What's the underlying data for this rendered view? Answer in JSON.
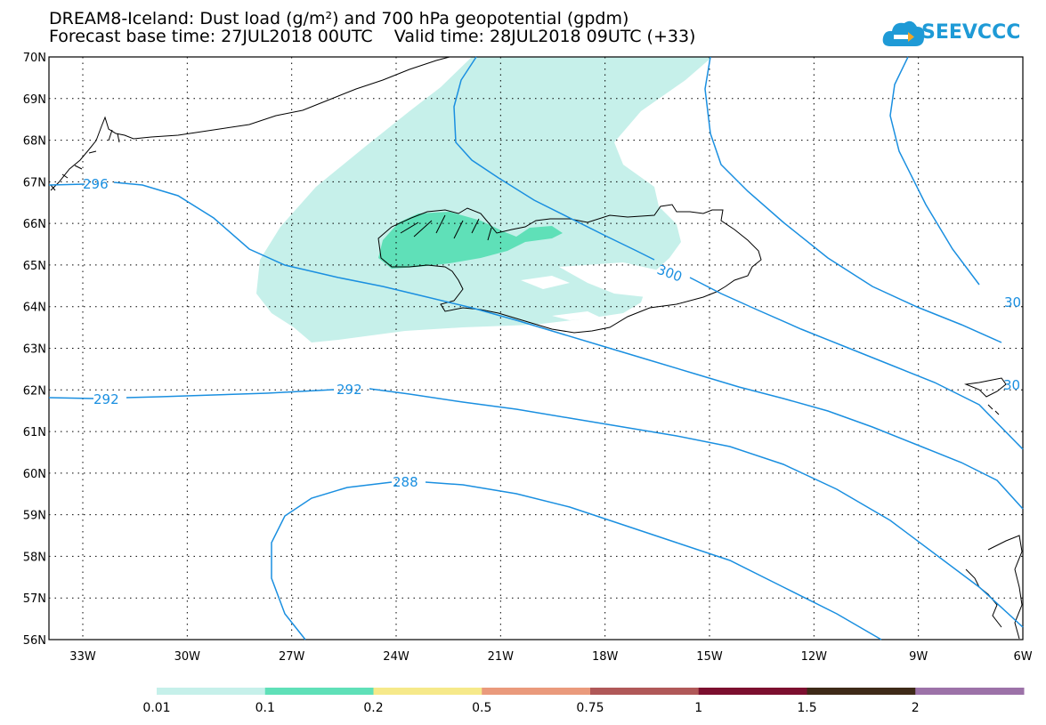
{
  "header": {
    "line1": "DREAM8-Iceland: Dust load (g/m²) and 700 hPa geopotential (gpdm)",
    "line2": "Forecast base time: 27JUL2018 00UTC    Valid time: 28JUL2018 09UTC (+33)"
  },
  "logo": {
    "text": "SEEVCCC",
    "color": "#1e9ad6"
  },
  "axes": {
    "lat_labels": [
      "70N",
      "69N",
      "68N",
      "67N",
      "66N",
      "65N",
      "64N",
      "63N",
      "62N",
      "61N",
      "60N",
      "59N",
      "58N",
      "57N",
      "56N"
    ],
    "lon_labels": [
      "33W",
      "30W",
      "27W",
      "24W",
      "21W",
      "18W",
      "15W",
      "12W",
      "9W",
      "6W"
    ]
  },
  "contours": {
    "color": "#1a8fe0",
    "labels": [
      {
        "text": "296"
      },
      {
        "text": "300"
      },
      {
        "text": "30"
      },
      {
        "text": "30"
      },
      {
        "text": "292"
      },
      {
        "text": "292"
      },
      {
        "text": "288"
      }
    ]
  },
  "colorbar": {
    "ticks": [
      "0.01",
      "0.1",
      "0.2",
      "0.5",
      "0.75",
      "1",
      "1.5",
      "2"
    ],
    "colors": [
      "#c6f0ea",
      "#5fe0b8",
      "#f6e98a",
      "#ea9a7c",
      "#b05858",
      "#7c0f2f",
      "#3e2a18",
      "#9c72a8"
    ]
  },
  "dust_colors": {
    "low": "#c6f0ea",
    "mid": "#5fe0b8"
  }
}
